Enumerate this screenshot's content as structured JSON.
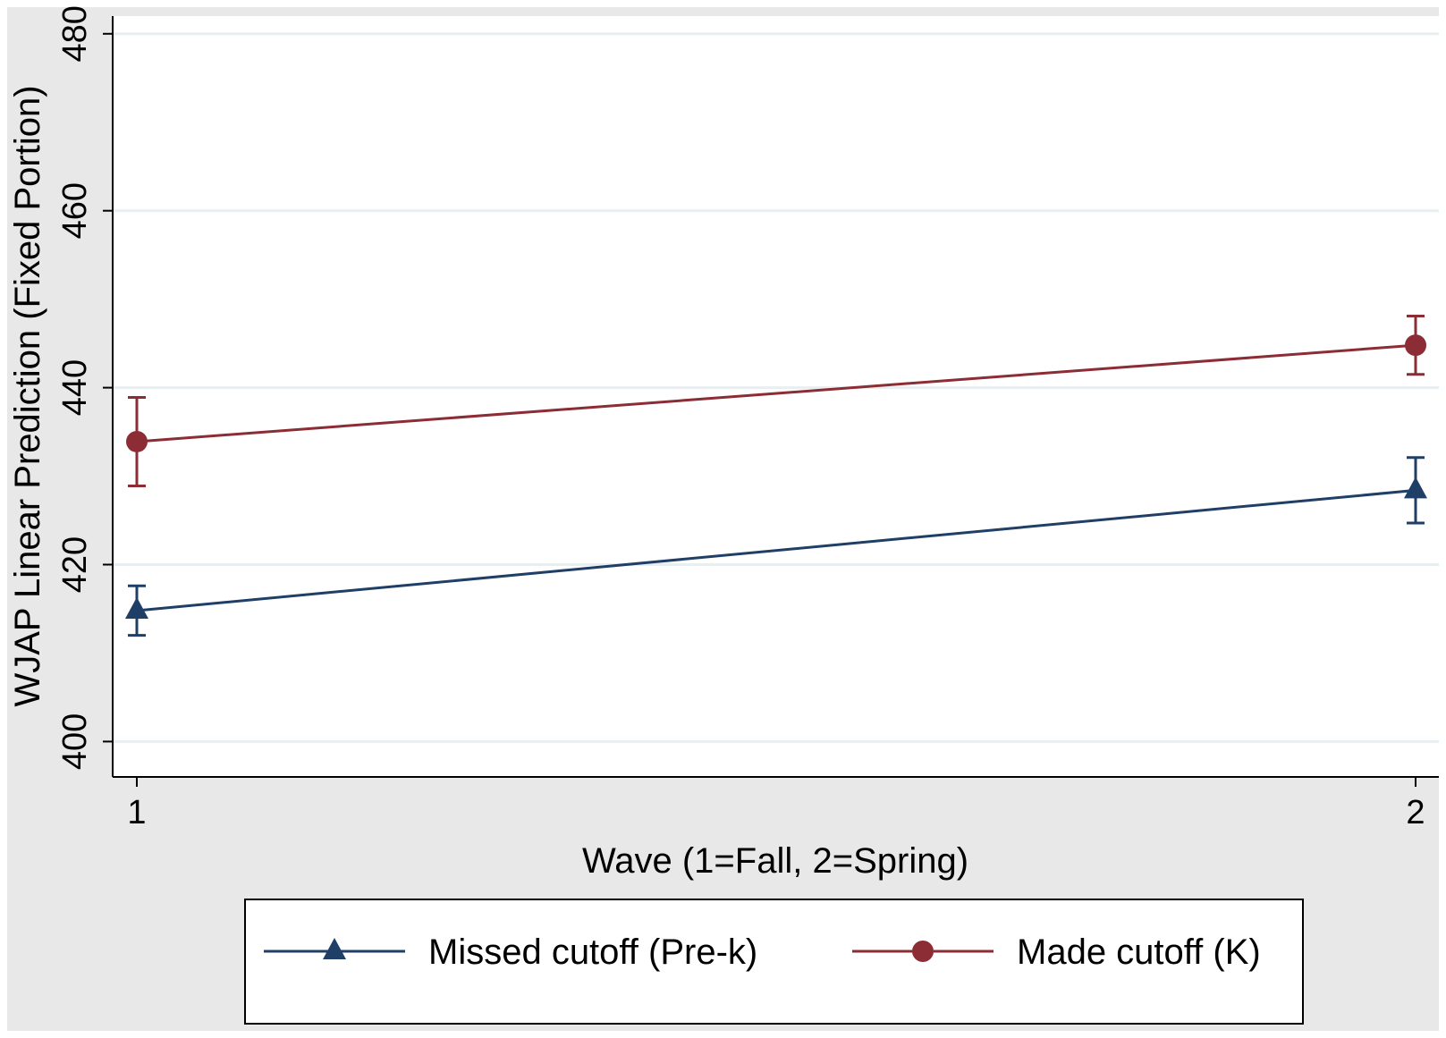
{
  "chart_data": {
    "type": "line",
    "title": "",
    "xlabel": "Wave (1=Fall, 2=Spring)",
    "ylabel": "WJAP Linear Prediction (Fixed Portion)",
    "x": [
      1,
      2
    ],
    "xticks": [
      "1",
      "2"
    ],
    "xlim": [
      0.98,
      2.02
    ],
    "ylim": [
      396,
      482
    ],
    "yticks": [
      400,
      420,
      440,
      460,
      480
    ],
    "ytick_labels": [
      "400",
      "420",
      "440",
      "460",
      "480"
    ],
    "grid": true,
    "legend_position": "bottom",
    "series": [
      {
        "name": "Missed cutoff (Pre-k)",
        "marker": "triangle",
        "color": "#1f3f66",
        "values": [
          414.8,
          428.4
        ],
        "ci_low": [
          412.0,
          424.7
        ],
        "ci_high": [
          417.6,
          432.1
        ]
      },
      {
        "name": "Made cutoff (K)",
        "marker": "circle",
        "color": "#8c2d35",
        "values": [
          433.9,
          444.8
        ],
        "ci_low": [
          428.9,
          441.5
        ],
        "ci_high": [
          438.9,
          448.1
        ]
      }
    ],
    "colors": {
      "outer_background": "#e8e8e8",
      "plot_background": "#ffffff",
      "gridline": "#e9eef1"
    }
  }
}
